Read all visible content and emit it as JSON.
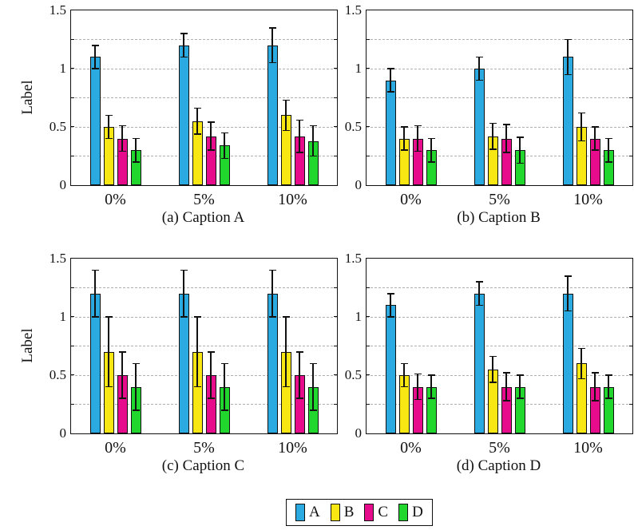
{
  "ylabel": "Label",
  "axis_color": "#111111",
  "grid_color": "#b0b0b0",
  "legend": {
    "entries": [
      {
        "label": "A",
        "color": "#2BA9E1"
      },
      {
        "label": "B",
        "color": "#F8E713"
      },
      {
        "label": "C",
        "color": "#E60C8C"
      },
      {
        "label": "D",
        "color": "#21D62C"
      }
    ]
  },
  "chart_data": [
    {
      "id": "a",
      "type": "bar",
      "caption": "(a) Caption A",
      "ylabel": "Label",
      "categories": [
        "0%",
        "5%",
        "10%"
      ],
      "ylim": [
        0,
        1.5
      ],
      "yticks": [
        0,
        0.5,
        1,
        1.5
      ],
      "ytick_labels": [
        "0",
        "0.5",
        "1",
        "1.5"
      ],
      "gridlines": [
        0.25,
        0.5,
        0.75,
        1,
        1.25
      ],
      "grid": "dashed",
      "series": [
        {
          "name": "A",
          "color": "#2BA9E1",
          "values": [
            1.1,
            1.2,
            1.2
          ],
          "errors": [
            0.1,
            0.1,
            0.15
          ]
        },
        {
          "name": "B",
          "color": "#F8E713",
          "values": [
            0.5,
            0.55,
            0.6
          ],
          "errors": [
            0.1,
            0.11,
            0.13
          ]
        },
        {
          "name": "C",
          "color": "#E60C8C",
          "values": [
            0.4,
            0.42,
            0.42
          ],
          "errors": [
            0.11,
            0.12,
            0.14
          ]
        },
        {
          "name": "D",
          "color": "#21D62C",
          "values": [
            0.3,
            0.34,
            0.38
          ],
          "errors": [
            0.1,
            0.11,
            0.13
          ]
        }
      ]
    },
    {
      "id": "b",
      "type": "bar",
      "caption": "(b) Caption B",
      "categories": [
        "0%",
        "5%",
        "10%"
      ],
      "ylim": [
        0,
        1.5
      ],
      "yticks": [
        0,
        0.5,
        1,
        1.5
      ],
      "ytick_labels": [
        "0",
        "0.5",
        "1",
        "1.5"
      ],
      "gridlines": [
        0.25,
        0.5,
        0.75,
        1,
        1.25
      ],
      "grid": "dashed",
      "series": [
        {
          "name": "A",
          "color": "#2BA9E1",
          "values": [
            0.9,
            1.0,
            1.1
          ],
          "errors": [
            0.1,
            0.1,
            0.15
          ]
        },
        {
          "name": "B",
          "color": "#F8E713",
          "values": [
            0.4,
            0.42,
            0.5
          ],
          "errors": [
            0.1,
            0.11,
            0.12
          ]
        },
        {
          "name": "C",
          "color": "#E60C8C",
          "values": [
            0.4,
            0.4,
            0.4
          ],
          "errors": [
            0.11,
            0.12,
            0.1
          ]
        },
        {
          "name": "D",
          "color": "#21D62C",
          "values": [
            0.3,
            0.3,
            0.3
          ],
          "errors": [
            0.1,
            0.11,
            0.1
          ]
        }
      ]
    },
    {
      "id": "c",
      "type": "bar",
      "caption": "(c) Caption C",
      "ylabel": "Label",
      "categories": [
        "0%",
        "5%",
        "10%"
      ],
      "ylim": [
        0,
        1.5
      ],
      "yticks": [
        0,
        0.5,
        1,
        1.5
      ],
      "ytick_labels": [
        "0",
        "0.5",
        "1",
        "1.5"
      ],
      "gridlines": [
        0.25,
        0.5,
        0.75,
        1,
        1.25
      ],
      "grid": "dashed",
      "series": [
        {
          "name": "A",
          "color": "#2BA9E1",
          "values": [
            1.2,
            1.2,
            1.2
          ],
          "errors": [
            0.2,
            0.2,
            0.2
          ]
        },
        {
          "name": "B",
          "color": "#F8E713",
          "values": [
            0.7,
            0.7,
            0.7
          ],
          "errors": [
            0.3,
            0.3,
            0.3
          ]
        },
        {
          "name": "C",
          "color": "#E60C8C",
          "values": [
            0.5,
            0.5,
            0.5
          ],
          "errors": [
            0.2,
            0.2,
            0.2
          ]
        },
        {
          "name": "D",
          "color": "#21D62C",
          "values": [
            0.4,
            0.4,
            0.4
          ],
          "errors": [
            0.2,
            0.2,
            0.2
          ]
        }
      ]
    },
    {
      "id": "d",
      "type": "bar",
      "caption": "(d) Caption D",
      "categories": [
        "0%",
        "5%",
        "10%"
      ],
      "ylim": [
        0,
        1.5
      ],
      "yticks": [
        0,
        0.5,
        1,
        1.5
      ],
      "ytick_labels": [
        "0",
        "0.5",
        "1",
        "1.5"
      ],
      "gridlines": [
        0.25,
        0.5,
        0.75,
        1,
        1.25
      ],
      "grid": "dashed",
      "series": [
        {
          "name": "A",
          "color": "#2BA9E1",
          "values": [
            1.1,
            1.2,
            1.2
          ],
          "errors": [
            0.1,
            0.1,
            0.15
          ]
        },
        {
          "name": "B",
          "color": "#F8E713",
          "values": [
            0.5,
            0.55,
            0.6
          ],
          "errors": [
            0.1,
            0.11,
            0.13
          ]
        },
        {
          "name": "C",
          "color": "#E60C8C",
          "values": [
            0.4,
            0.4,
            0.4
          ],
          "errors": [
            0.11,
            0.12,
            0.12
          ]
        },
        {
          "name": "D",
          "color": "#21D62C",
          "values": [
            0.4,
            0.4,
            0.4
          ],
          "errors": [
            0.1,
            0.1,
            0.1
          ]
        }
      ]
    }
  ]
}
